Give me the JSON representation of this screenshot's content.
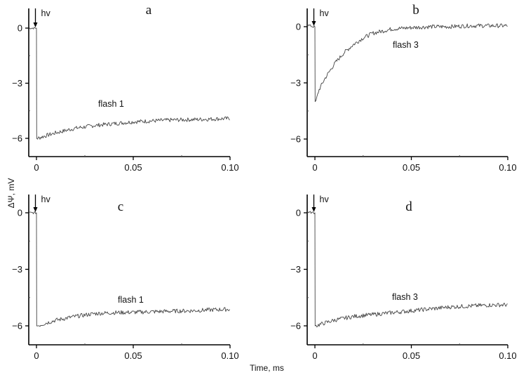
{
  "figure": {
    "ylabel": "ΔΨ, mV",
    "xlabel": "Time, ms",
    "stimulus_label": "hv"
  },
  "chart_data": [
    {
      "type": "line",
      "panel": "a",
      "annotation": "flash 1",
      "xlabel": "Time, ms",
      "ylabel": "ΔΨ, mV",
      "xlim": [
        -0.004,
        0.1
      ],
      "ylim": [
        -7,
        1
      ],
      "xticks": [
        "0",
        "0.05",
        "0.10"
      ],
      "yticks": [
        "0",
        "−3",
        "−6"
      ],
      "series": [
        {
          "name": "flash 1",
          "x": [
            -0.004,
            -0.001,
            0.0,
            0.0005,
            0.005,
            0.01,
            0.02,
            0.03,
            0.04,
            0.05,
            0.06,
            0.07,
            0.08,
            0.09,
            0.1
          ],
          "values": [
            0.0,
            0.0,
            0.0,
            -6.0,
            -5.85,
            -5.7,
            -5.45,
            -5.3,
            -5.2,
            -5.1,
            -5.05,
            -5.0,
            -4.98,
            -4.95,
            -4.92
          ]
        }
      ]
    },
    {
      "type": "line",
      "panel": "b",
      "annotation": "flash 3",
      "xlabel": "Time, ms",
      "ylabel": "ΔΨ, mV",
      "xlim": [
        -0.004,
        0.1
      ],
      "ylim": [
        -7,
        1
      ],
      "xticks": [
        "0",
        "0.05",
        "0.10"
      ],
      "yticks": [
        "0",
        "−3",
        "−6"
      ],
      "series": [
        {
          "name": "flash 3",
          "x": [
            -0.004,
            -0.001,
            0.0,
            0.0005,
            0.002,
            0.005,
            0.01,
            0.015,
            0.02,
            0.025,
            0.03,
            0.04,
            0.05,
            0.06,
            0.07,
            0.08,
            0.09,
            0.1
          ],
          "values": [
            0.1,
            0.0,
            0.0,
            -4.0,
            -3.4,
            -2.8,
            -2.0,
            -1.4,
            -0.95,
            -0.6,
            -0.35,
            -0.12,
            -0.05,
            0.0,
            0.0,
            0.05,
            0.05,
            0.05
          ]
        }
      ]
    },
    {
      "type": "line",
      "panel": "c",
      "annotation": "flash 1",
      "xlabel": "Time, ms",
      "ylabel": "ΔΨ, mV",
      "xlim": [
        -0.004,
        0.1
      ],
      "ylim": [
        -7,
        1
      ],
      "xticks": [
        "0",
        "0.05",
        "0.10"
      ],
      "yticks": [
        "0",
        "−3",
        "−6"
      ],
      "series": [
        {
          "name": "flash 1",
          "x": [
            -0.004,
            -0.001,
            0.0,
            0.0005,
            0.005,
            0.01,
            0.02,
            0.03,
            0.04,
            0.05,
            0.06,
            0.07,
            0.08,
            0.09,
            0.1
          ],
          "values": [
            0.0,
            0.0,
            0.0,
            -6.0,
            -5.85,
            -5.7,
            -5.5,
            -5.35,
            -5.3,
            -5.28,
            -5.25,
            -5.22,
            -5.2,
            -5.15,
            -5.12
          ]
        }
      ]
    },
    {
      "type": "line",
      "panel": "d",
      "annotation": "flash 3",
      "xlabel": "Time, ms",
      "ylabel": "ΔΨ, mV",
      "xlim": [
        -0.004,
        0.1
      ],
      "ylim": [
        -7,
        1
      ],
      "xticks": [
        "0",
        "0.05",
        "0.10"
      ],
      "yticks": [
        "0",
        "−3",
        "−6"
      ],
      "series": [
        {
          "name": "flash 3",
          "x": [
            -0.004,
            -0.001,
            0.0,
            0.0005,
            0.005,
            0.01,
            0.02,
            0.03,
            0.04,
            0.05,
            0.06,
            0.07,
            0.08,
            0.09,
            0.1
          ],
          "values": [
            0.05,
            0.0,
            0.0,
            -6.0,
            -5.85,
            -5.7,
            -5.5,
            -5.4,
            -5.3,
            -5.2,
            -5.1,
            -5.0,
            -4.95,
            -4.9,
            -4.88
          ]
        }
      ]
    }
  ],
  "panels": [
    {
      "label": "a",
      "annotation": "flash 1"
    },
    {
      "label": "b",
      "annotation": "flash 3"
    },
    {
      "label": "c",
      "annotation": "flash 1"
    },
    {
      "label": "d",
      "annotation": "flash 3"
    }
  ]
}
